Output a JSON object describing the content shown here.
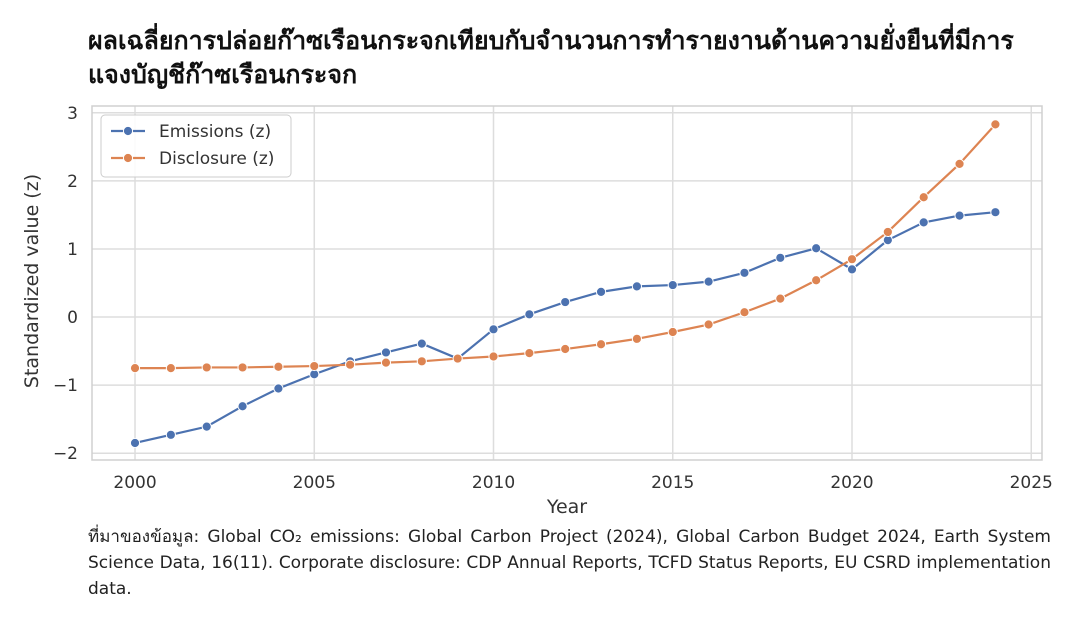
{
  "title": "ผลเฉลี่ยการปล่อยก๊าซเรือนกระจกเทียบกับจำนวนการทำรายงานด้านความยั่งยืนที่มีการแจงบัญชีก๊าซเรือนกระจก",
  "source_text": "ที่มาของข้อมูล:  Global CO₂ emissions: Global Carbon Project (2024), Global Carbon Budget 2024, Earth System Science Data, 16(11). Corporate disclosure: CDP Annual Reports, TCFD Status Reports, EU CSRD implementation data.",
  "chart_data": {
    "type": "line",
    "xlabel": "Year",
    "ylabel": "Standardized value (z)",
    "xlim": [
      1998.8,
      2025.3
    ],
    "ylim": [
      -2.1,
      3.1
    ],
    "xticks": [
      2000,
      2005,
      2010,
      2015,
      2020,
      2025
    ],
    "yticks": [
      -2,
      -1,
      0,
      1,
      2,
      3
    ],
    "ytick_labels": [
      "−2",
      "−1",
      "0",
      "1",
      "2",
      "3"
    ],
    "grid": true,
    "legend_position": "top-left",
    "x": [
      2000,
      2001,
      2002,
      2003,
      2004,
      2005,
      2006,
      2007,
      2008,
      2009,
      2010,
      2011,
      2012,
      2013,
      2014,
      2015,
      2016,
      2017,
      2018,
      2019,
      2020,
      2021,
      2022,
      2023,
      2024
    ],
    "series": [
      {
        "name": "Emissions (z)",
        "color": "#4c72b0",
        "values": [
          -1.85,
          -1.73,
          -1.61,
          -1.31,
          -1.05,
          -0.84,
          -0.65,
          -0.52,
          -0.39,
          -0.61,
          -0.18,
          0.04,
          0.22,
          0.37,
          0.45,
          0.47,
          0.52,
          0.65,
          0.87,
          1.01,
          0.7,
          1.13,
          1.39,
          1.49,
          1.54
        ]
      },
      {
        "name": "Disclosure (z)",
        "color": "#dd8452",
        "values": [
          -0.75,
          -0.75,
          -0.74,
          -0.74,
          -0.73,
          -0.72,
          -0.7,
          -0.67,
          -0.65,
          -0.61,
          -0.58,
          -0.53,
          -0.47,
          -0.4,
          -0.32,
          -0.22,
          -0.11,
          0.07,
          0.27,
          0.54,
          0.85,
          1.25,
          1.76,
          2.25,
          2.83
        ]
      }
    ]
  }
}
